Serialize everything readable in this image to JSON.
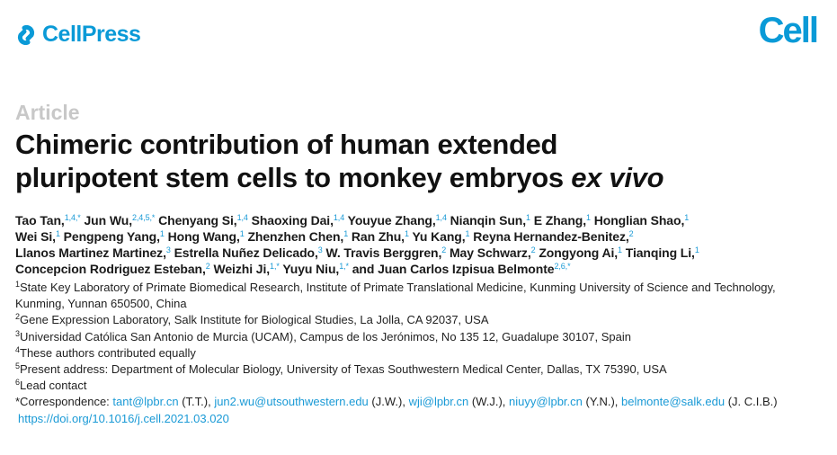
{
  "header": {
    "publisher_logo": "CellPress",
    "journal_logo": "Cell",
    "accent_color": "#0a9ad7"
  },
  "article_type": "Article",
  "title": {
    "line1": "Chimeric contribution of human extended",
    "line2_prefix": "pluripotent stem cells to monkey embryos ",
    "line2_italic": "ex vivo"
  },
  "author_lines": [
    [
      {
        "n": "Tao Tan,",
        "s": "1,4,*"
      },
      {
        "n": "Jun Wu,",
        "s": "2,4,5,*"
      },
      {
        "n": "Chenyang Si,",
        "s": "1,4"
      },
      {
        "n": "Shaoxing Dai,",
        "s": "1,4"
      },
      {
        "n": "Youyue Zhang,",
        "s": "1,4"
      },
      {
        "n": "Nianqin Sun,",
        "s": "1"
      },
      {
        "n": "E Zhang,",
        "s": "1"
      },
      {
        "n": "Honglian Shao,",
        "s": "1"
      }
    ],
    [
      {
        "n": "Wei Si,",
        "s": "1"
      },
      {
        "n": "Pengpeng Yang,",
        "s": "1"
      },
      {
        "n": "Hong Wang,",
        "s": "1"
      },
      {
        "n": "Zhenzhen Chen,",
        "s": "1"
      },
      {
        "n": "Ran Zhu,",
        "s": "1"
      },
      {
        "n": "Yu Kang,",
        "s": "1"
      },
      {
        "n": "Reyna Hernandez-Benitez,",
        "s": "2"
      }
    ],
    [
      {
        "n": "Llanos Martinez Martinez,",
        "s": "3"
      },
      {
        "n": "Estrella Nuñez Delicado,",
        "s": "3"
      },
      {
        "n": "W. Travis Berggren,",
        "s": "2"
      },
      {
        "n": "May Schwarz,",
        "s": "2"
      },
      {
        "n": "Zongyong Ai,",
        "s": "1"
      },
      {
        "n": "Tianqing Li,",
        "s": "1"
      }
    ],
    [
      {
        "n": "Concepcion Rodriguez Esteban,",
        "s": "2"
      },
      {
        "n": "Weizhi Ji,",
        "s": "1,*"
      },
      {
        "n": "Yuyu Niu,",
        "s": "1,*"
      },
      {
        "n": "and Juan Carlos Izpisua Belmonte",
        "s": "2,6,*"
      }
    ]
  ],
  "affiliations": [
    {
      "s": "1",
      "t": "State Key Laboratory of Primate Biomedical Research, Institute of Primate Translational Medicine, Kunming University of Science and Technology, Kunming, Yunnan 650500, China"
    },
    {
      "s": "2",
      "t": "Gene Expression Laboratory, Salk Institute for Biological Studies, La Jolla, CA 92037, USA"
    },
    {
      "s": "3",
      "t": "Universidad Católica San Antonio de Murcia (UCAM), Campus de los Jerónimos, No 135 12, Guadalupe 30107, Spain"
    },
    {
      "s": "4",
      "t": "These authors contributed equally"
    },
    {
      "s": "5",
      "t": "Present address: Department of Molecular Biology, University of Texas Southwestern Medical Center, Dallas, TX 75390, USA"
    },
    {
      "s": "6",
      "t": "Lead contact"
    }
  ],
  "correspondence": {
    "label": "*Correspondence: ",
    "entries": [
      {
        "email": "tant@lpbr.cn",
        "who": " (T.T.), "
      },
      {
        "email": "jun2.wu@utsouthwestern.edu",
        "who": " (J.W.), "
      },
      {
        "email": "wji@lpbr.cn",
        "who": " (W.J.), "
      },
      {
        "email": "niuyy@lpbr.cn",
        "who": " (Y.N.), "
      },
      {
        "email": "belmonte@salk.edu",
        "who": " (J. C.I.B.)"
      }
    ]
  },
  "doi": "https://doi.org/10.1016/j.cell.2021.03.020"
}
